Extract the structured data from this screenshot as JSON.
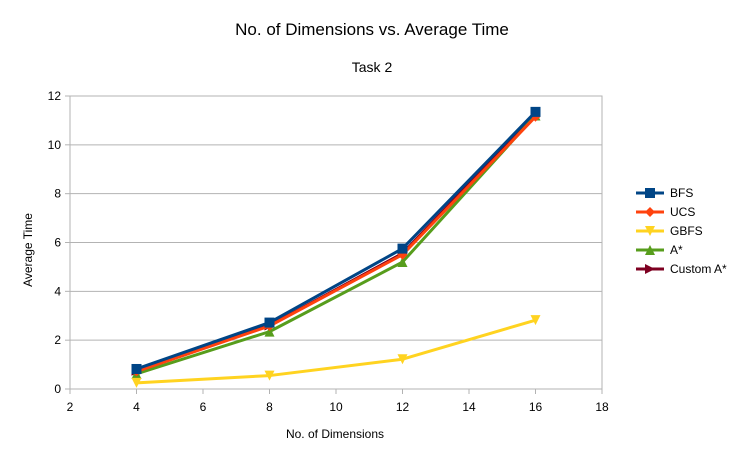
{
  "chart_data": {
    "type": "line",
    "title": "No. of Dimensions vs. Average Time",
    "subtitle": "Task 2",
    "xlabel": "No. of Dimensions",
    "ylabel": "Average Time",
    "xlim": [
      2,
      18
    ],
    "ylim": [
      0,
      12
    ],
    "xticks": [
      2,
      4,
      6,
      8,
      10,
      12,
      14,
      16,
      18
    ],
    "yticks": [
      0,
      2,
      4,
      6,
      8,
      10,
      12
    ],
    "grid": true,
    "legend_position": "right",
    "x": [
      4,
      8,
      12,
      16
    ],
    "series": [
      {
        "name": "BFS",
        "values": [
          0.82,
          2.72,
          5.75,
          11.35
        ],
        "color": "#004586",
        "marker": "square"
      },
      {
        "name": "UCS",
        "values": [
          0.72,
          2.58,
          5.5,
          11.15
        ],
        "color": "#ff420e",
        "marker": "diamond"
      },
      {
        "name": "GBFS",
        "values": [
          0.25,
          0.55,
          1.22,
          2.82
        ],
        "color": "#ffd320",
        "marker": "triangle-down"
      },
      {
        "name": "A*",
        "values": [
          0.62,
          2.35,
          5.2,
          11.2
        ],
        "color": "#579d1c",
        "marker": "triangle-up"
      },
      {
        "name": "Custom A*",
        "values": [
          0.75,
          2.6,
          5.55,
          11.25
        ],
        "color": "#7e0021",
        "marker": "triangle-right"
      }
    ]
  }
}
